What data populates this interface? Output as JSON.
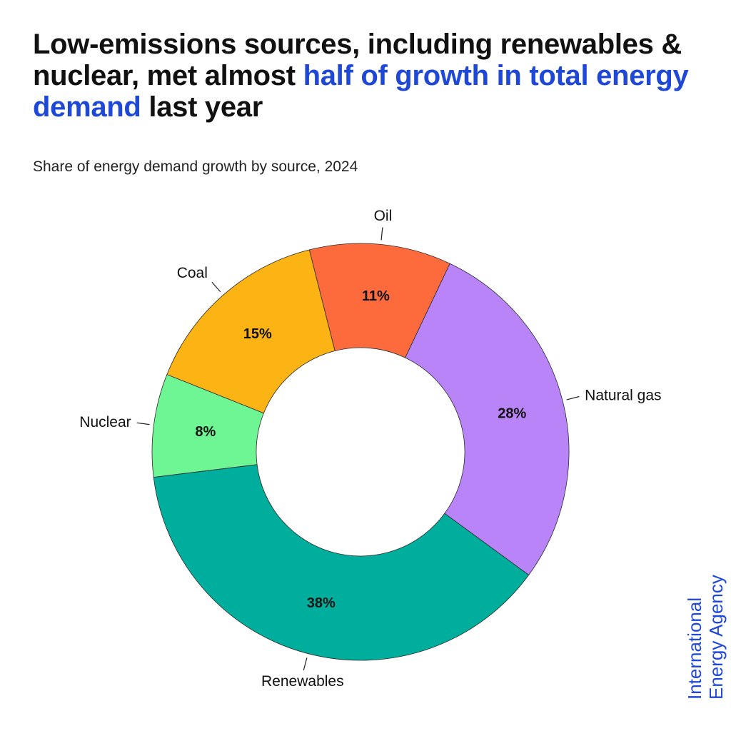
{
  "header": {
    "title_part1": "Low-emissions sources, including renewables & nuclear, met almost ",
    "title_highlight": "half of growth in total energy demand",
    "title_part2": " last year",
    "subtitle": "Share of energy demand growth by source, 2024"
  },
  "brand": {
    "line1": "International",
    "line2": "Energy Agency"
  },
  "colors": {
    "accent": "#1f48d6"
  },
  "chart_data": {
    "type": "pie",
    "style": "donut",
    "title": "Share of energy demand growth by source, 2024",
    "unit": "%",
    "slices": [
      {
        "label": "Nuclear",
        "value": 8,
        "display": "8%",
        "color": "#6ef594"
      },
      {
        "label": "Coal",
        "value": 15,
        "display": "15%",
        "color": "#fcb314"
      },
      {
        "label": "Oil",
        "value": 11,
        "display": "11%",
        "color": "#fd6b3d"
      },
      {
        "label": "Natural gas",
        "value": 28,
        "display": "28%",
        "color": "#b984f7"
      },
      {
        "label": "Renewables",
        "value": 38,
        "display": "38%",
        "color": "#00ae9e"
      }
    ],
    "legend": "none"
  }
}
